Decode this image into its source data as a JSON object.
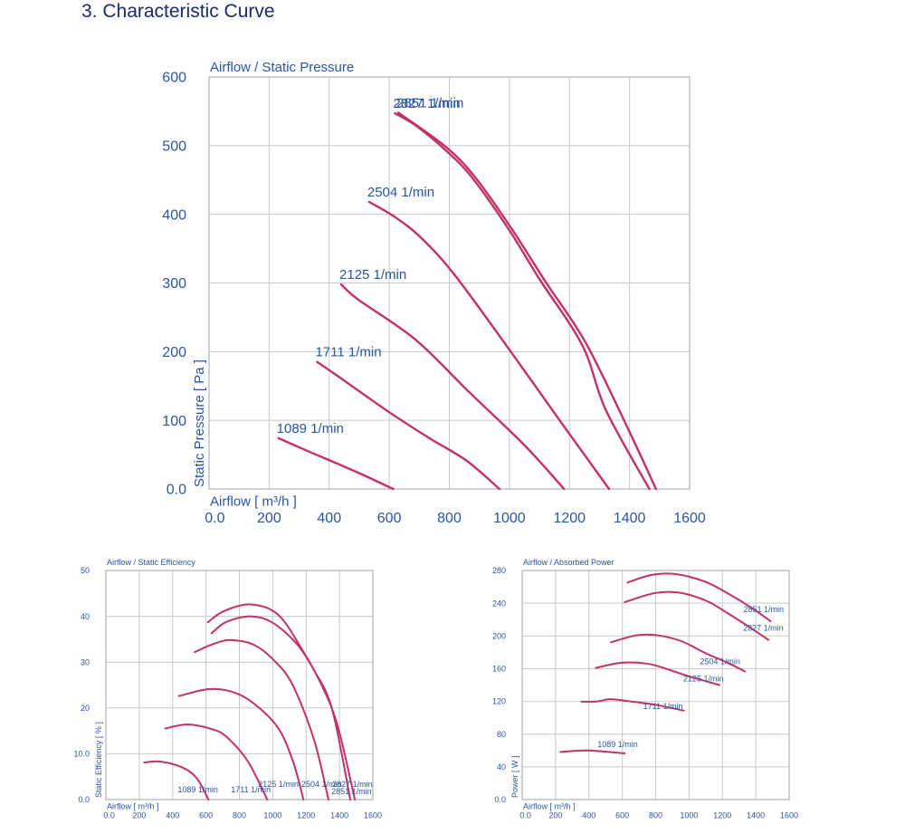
{
  "heading": "3. Characteristic Curve",
  "colors": {
    "curve": "#c4306a",
    "text": "#2a55a5",
    "grid": "#c9c9c9",
    "heading": "#1b2a6b"
  },
  "chart_data": [
    {
      "type": "line",
      "title": "Airflow / Static Pressure",
      "xlabel": "Airflow [ m³/h ]",
      "ylabel": "Static Pressure [ Pa ]",
      "xlim": [
        0,
        1600
      ],
      "ylim": [
        0,
        600
      ],
      "grid": true,
      "xticks": [
        "0.0",
        "200",
        "400",
        "600",
        "800",
        "1000",
        "1200",
        "1400",
        "1600"
      ],
      "yticks": [
        "0.0",
        "100",
        "200",
        "300",
        "400",
        "500",
        "600"
      ],
      "series": [
        {
          "name": "1089 1/min",
          "points": [
            [
              231,
              74
            ],
            [
              330,
              55
            ],
            [
              485,
              26
            ],
            [
              613,
              0
            ]
          ]
        },
        {
          "name": "1711 1/min",
          "points": [
            [
              360,
              185
            ],
            [
              430,
              164
            ],
            [
              596,
              113
            ],
            [
              730,
              75
            ],
            [
              858,
              41
            ],
            [
              967,
              0
            ]
          ]
        },
        {
          "name": "2125 1/min",
          "points": [
            [
              440,
              298
            ],
            [
              496,
              276
            ],
            [
              686,
              218
            ],
            [
              864,
              142
            ],
            [
              1054,
              62
            ],
            [
              1182,
              0
            ]
          ]
        },
        {
          "name": "2504 1/min",
          "points": [
            [
              533,
              418
            ],
            [
              619,
              396
            ],
            [
              708,
              365
            ],
            [
              819,
              311
            ],
            [
              998,
              204
            ],
            [
              1187,
              88
            ],
            [
              1332,
              0
            ]
          ]
        },
        {
          "name": "2827 1/min",
          "points": [
            [
              619,
              547
            ],
            [
              686,
              530
            ],
            [
              786,
              494
            ],
            [
              875,
              454
            ],
            [
              998,
              378
            ],
            [
              1098,
              307
            ],
            [
              1243,
              209
            ],
            [
              1321,
              115
            ],
            [
              1466,
              0
            ]
          ]
        },
        {
          "name": "2851 1/min",
          "points": [
            [
              630,
              548
            ],
            [
              786,
              499
            ],
            [
              886,
              454
            ],
            [
              1009,
              378
            ],
            [
              1120,
              302
            ],
            [
              1254,
              213
            ],
            [
              1399,
              84
            ],
            [
              1488,
              0
            ]
          ]
        }
      ]
    },
    {
      "type": "line",
      "title": "Airflow / Static Efficiency",
      "xlabel": "Airflow [ m³/h ]",
      "ylabel": "Static Efficiency [ % ]",
      "xlim": [
        0,
        1600
      ],
      "ylim": [
        0,
        50
      ],
      "grid": true,
      "xticks": [
        "0.0",
        "200",
        "400",
        "600",
        "800",
        "1000",
        "1200",
        "1400",
        "1600"
      ],
      "yticks": [
        "0.0",
        "10.0",
        "20",
        "30",
        "40",
        "50"
      ],
      "series": [
        {
          "name": "1089 1/min",
          "points": [
            [
              230,
              8.1
            ],
            [
              325,
              8.3
            ],
            [
              452,
              7.1
            ],
            [
              542,
              4.8
            ],
            [
              615,
              0
            ]
          ]
        },
        {
          "name": "1711 1/min",
          "points": [
            [
              356,
              15.5
            ],
            [
              488,
              16.4
            ],
            [
              633,
              15.4
            ],
            [
              723,
              13.7
            ],
            [
              850,
              8.4
            ],
            [
              967,
              0
            ]
          ]
        },
        {
          "name": "2125 1/min",
          "points": [
            [
              438,
              22.6
            ],
            [
              615,
              24.1
            ],
            [
              759,
              23.5
            ],
            [
              886,
              21
            ],
            [
              1031,
              15.7
            ],
            [
              1121,
              8.4
            ],
            [
              1184,
              0
            ]
          ]
        },
        {
          "name": "2504 1/min",
          "points": [
            [
              533,
              32.2
            ],
            [
              633,
              33.8
            ],
            [
              741,
              34.8
            ],
            [
              886,
              33.8
            ],
            [
              1013,
              30.2
            ],
            [
              1121,
              24.9
            ],
            [
              1248,
              13
            ],
            [
              1334,
              0
            ]
          ]
        },
        {
          "name": "2827 1/min",
          "points": [
            [
              633,
              36.3
            ],
            [
              723,
              38.8
            ],
            [
              868,
              40
            ],
            [
              995,
              38.7
            ],
            [
              1139,
              34.2
            ],
            [
              1248,
              28.2
            ],
            [
              1356,
              19.7
            ],
            [
              1465,
              0
            ]
          ]
        },
        {
          "name": "2851 1/min",
          "points": [
            [
              611,
              38.7
            ],
            [
              705,
              41.1
            ],
            [
              868,
              42.6
            ],
            [
              1031,
              40.4
            ],
            [
              1175,
              32.8
            ],
            [
              1302,
              24.3
            ],
            [
              1392,
              15.7
            ],
            [
              1492,
              0
            ]
          ]
        }
      ]
    },
    {
      "type": "line",
      "title": "Airflow / Absorbed Power",
      "xlabel": "Airflow [ m³/h ]",
      "ylabel": "Power [ W ]",
      "xlim": [
        0,
        1600
      ],
      "ylim": [
        0,
        280
      ],
      "grid": true,
      "xticks": [
        "0.0",
        "200",
        "400",
        "600",
        "800",
        "1000",
        "1200",
        "1400",
        "1600"
      ],
      "yticks": [
        "0.0",
        "40",
        "80",
        "120",
        "160",
        "200",
        "240",
        "280"
      ],
      "series": [
        {
          "name": "1089 1/min",
          "points": [
            [
              229,
              58.2
            ],
            [
              397,
              60
            ],
            [
              614,
              56.4
            ]
          ]
        },
        {
          "name": "1711 1/min",
          "points": [
            [
              356,
              119.7
            ],
            [
              451,
              120
            ],
            [
              523,
              122.7
            ],
            [
              614,
              120.9
            ],
            [
              794,
              116
            ],
            [
              969,
              108.7
            ]
          ]
        },
        {
          "name": "2125 1/min",
          "points": [
            [
              442,
              161
            ],
            [
              596,
              167.3
            ],
            [
              758,
              165.8
            ],
            [
              884,
              158.4
            ],
            [
              993,
              151
            ],
            [
              1182,
              140
            ]
          ]
        },
        {
          "name": "2504 1/min",
          "points": [
            [
              532,
              192.3
            ],
            [
              686,
              200.8
            ],
            [
              812,
              200.8
            ],
            [
              957,
              193.4
            ],
            [
              1101,
              178.7
            ],
            [
              1227,
              167.6
            ],
            [
              1336,
              156.6
            ]
          ]
        },
        {
          "name": "2827 1/min",
          "points": [
            [
              614,
              241.3
            ],
            [
              794,
              252.4
            ],
            [
              939,
              253
            ],
            [
              1101,
              243.2
            ],
            [
              1227,
              228.4
            ],
            [
              1354,
              211.9
            ],
            [
              1476,
              195.3
            ]
          ]
        },
        {
          "name": "2851 1/min",
          "points": [
            [
              632,
              265.3
            ],
            [
              776,
              274.6
            ],
            [
              921,
              275.6
            ],
            [
              1101,
              266
            ],
            [
              1245,
              250.5
            ],
            [
              1372,
              234.7
            ],
            [
              1489,
              218
            ]
          ]
        }
      ]
    }
  ]
}
